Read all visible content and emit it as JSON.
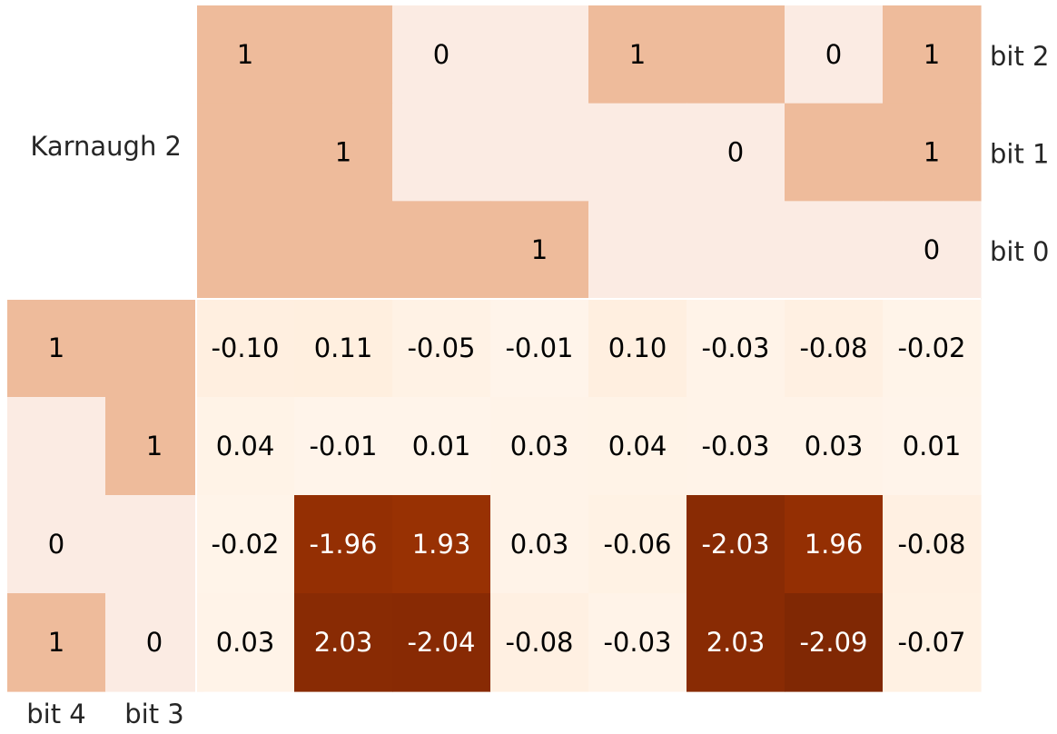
{
  "chart_data": {
    "type": "heatmap",
    "title": "Karnaugh 2",
    "colors": {
      "bit_on": "#eebb9b",
      "bit_off": "#fbebe3",
      "text_dark": "#000000",
      "text_light": "#ffffff",
      "label": "#262626"
    },
    "top_rows": [
      {
        "label": "bit 2",
        "bits": [
          1,
          1,
          0,
          0,
          1,
          1,
          0,
          1
        ],
        "shown": [
          "1",
          "",
          "0",
          "",
          "1",
          "",
          "0",
          "1"
        ]
      },
      {
        "label": "bit 1",
        "bits": [
          1,
          1,
          0,
          0,
          0,
          0,
          1,
          1
        ],
        "shown": [
          "",
          "1",
          "",
          "",
          "",
          "0",
          "",
          "1"
        ]
      },
      {
        "label": "bit 0",
        "bits": [
          1,
          1,
          1,
          1,
          0,
          0,
          0,
          0
        ],
        "shown": [
          "",
          "",
          "",
          "1",
          "",
          "",
          "",
          "0"
        ]
      }
    ],
    "left_cols": [
      {
        "label": "bit 4",
        "bits": [
          1,
          0,
          0,
          1
        ],
        "shown": [
          "1",
          "",
          "0",
          "1"
        ]
      },
      {
        "label": "bit 3",
        "bits": [
          1,
          1,
          0,
          0
        ],
        "shown": [
          "",
          "1",
          "",
          "0"
        ]
      }
    ],
    "values": [
      [
        -0.1,
        0.11,
        -0.05,
        -0.01,
        0.1,
        -0.03,
        -0.08,
        -0.02
      ],
      [
        0.04,
        -0.01,
        0.01,
        0.03,
        0.04,
        -0.03,
        0.03,
        0.01
      ],
      [
        -0.02,
        -1.96,
        1.93,
        0.03,
        -0.06,
        -2.03,
        1.96,
        -0.08
      ],
      [
        0.03,
        2.03,
        -2.04,
        -0.08,
        -0.03,
        2.03,
        -2.09,
        -0.07
      ]
    ],
    "labels": [
      [
        "-0.10",
        "0.11",
        "-0.05",
        "-0.01",
        "0.10",
        "-0.03",
        "-0.08",
        "-0.02"
      ],
      [
        "0.04",
        "-0.01",
        "0.01",
        "0.03",
        "0.04",
        "-0.03",
        "0.03",
        "0.01"
      ],
      [
        "-0.02",
        "-1.96",
        "1.93",
        "0.03",
        "-0.06",
        "-2.03",
        "1.96",
        "-0.08"
      ],
      [
        "0.03",
        "2.03",
        "-2.04",
        "-0.08",
        "-0.03",
        "2.03",
        "-2.09",
        "-0.07"
      ]
    ],
    "color_range": [
      0,
      2.1
    ]
  }
}
